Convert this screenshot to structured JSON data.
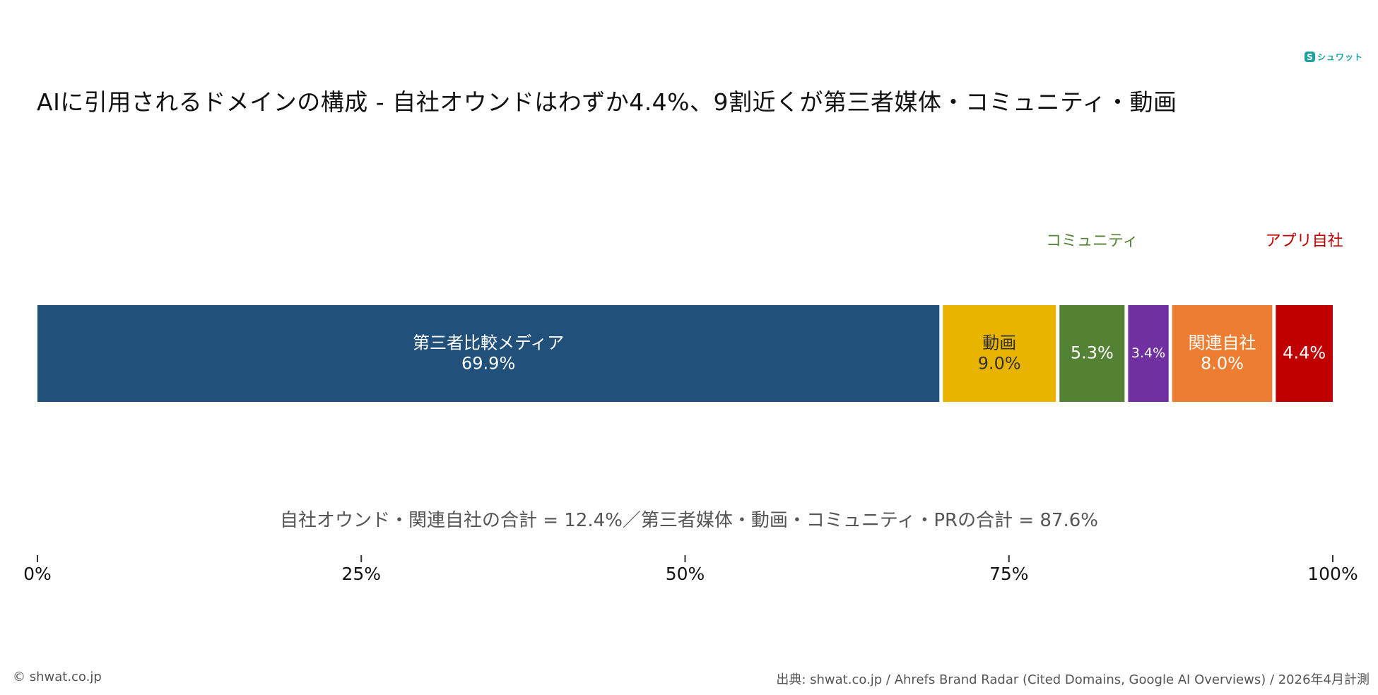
{
  "title": "AIに引用されるドメインの構成 - 自社オウンドはわずか4.4%、9割近くが第三者媒体・コミュニティ・動画",
  "logo": {
    "mark": "S",
    "text": "シュワット"
  },
  "summary": "自社オウンド・関連自社の合計 = 12.4%／第三者媒体・動画・コミュニティ・PRの合計 = 87.6%",
  "footer": {
    "copyright": "© shwat.co.jp",
    "source": "出典: shwat.co.jp / Ahrefs Brand Radar (Cited Domains, Google AI Overviews) / 2026年4月計測"
  },
  "chart_data": {
    "type": "bar",
    "stacked": true,
    "orientation": "horizontal",
    "xlim": [
      0,
      100
    ],
    "x_ticks": [
      "0%",
      "25%",
      "50%",
      "75%",
      "100%"
    ],
    "segments": [
      {
        "name": "第三者比較メディア",
        "value": 69.9,
        "label": "69.9%",
        "color": "#21507a",
        "text_color": "#ffffff",
        "name_position": "inside"
      },
      {
        "name": "動画",
        "value": 9.0,
        "label": "9.0%",
        "color": "#e8b400",
        "text_color": "#333333",
        "name_position": "inside"
      },
      {
        "name": "コミュニティ",
        "value": 5.3,
        "label": "5.3%",
        "color": "#548235",
        "text_color": "#ffffff",
        "name_position": "above",
        "name_color": "#548235"
      },
      {
        "name": "",
        "value": 3.4,
        "label": "3.4%",
        "color": "#7030a0",
        "text_color": "#ffffff",
        "name_position": "none"
      },
      {
        "name": "関連自社",
        "value": 8.0,
        "label": "8.0%",
        "color": "#ed7d31",
        "text_color": "#ffffff",
        "name_position": "inside"
      },
      {
        "name": "アプリ自社",
        "value": 4.4,
        "label": "4.4%",
        "color": "#c00000",
        "text_color": "#ffffff",
        "name_position": "above",
        "name_color": "#c00000"
      }
    ]
  }
}
